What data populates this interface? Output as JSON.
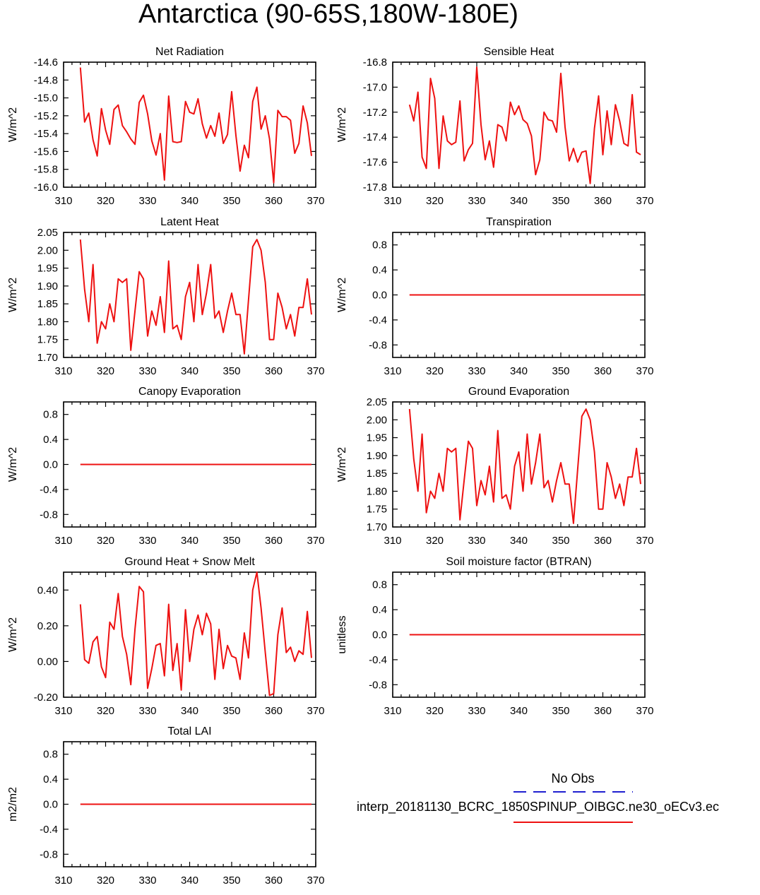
{
  "page": {
    "title": "Antarctica (90-65S,180W-180E)"
  },
  "legend": {
    "obs_label": "No Obs",
    "obs_color": "#1f1fd0",
    "model_label": "interp_20181130_BCRC_1850SPINUP_OIBGC.ne30_oECv3.ec",
    "model_color": "#ee1111"
  },
  "chart_data": [
    {
      "type": "line",
      "title": "Net Radiation",
      "ylabel": "W/m^2",
      "xlim": [
        310,
        370
      ],
      "xticks": [
        310,
        320,
        330,
        340,
        350,
        360,
        370
      ],
      "ylim": [
        -16.0,
        -14.6
      ],
      "yticks": [
        "-14.6",
        "-14.8",
        "-15.0",
        "-15.2",
        "-15.4",
        "-15.6",
        "-15.8",
        "-16.0"
      ],
      "x": [
        314,
        315,
        316,
        317,
        318,
        319,
        320,
        321,
        322,
        323,
        324,
        325,
        326,
        327,
        328,
        329,
        330,
        331,
        332,
        333,
        334,
        335,
        336,
        337,
        338,
        339,
        340,
        341,
        342,
        343,
        344,
        345,
        346,
        347,
        348,
        349,
        350,
        351,
        352,
        353,
        354,
        355,
        356,
        357,
        358,
        359,
        360,
        361,
        362,
        363,
        364,
        365,
        366,
        367,
        368,
        369
      ],
      "series": [
        {
          "values": [
            -14.66,
            -15.27,
            -15.17,
            -15.47,
            -15.65,
            -15.12,
            -15.36,
            -15.52,
            -15.13,
            -15.08,
            -15.31,
            -15.38,
            -15.46,
            -15.52,
            -15.05,
            -14.97,
            -15.18,
            -15.48,
            -15.64,
            -15.4,
            -15.92,
            -14.98,
            -15.49,
            -15.5,
            -15.49,
            -15.04,
            -15.16,
            -15.18,
            -15.01,
            -15.29,
            -15.45,
            -15.31,
            -15.43,
            -15.17,
            -15.51,
            -15.41,
            -14.93,
            -15.42,
            -15.82,
            -15.53,
            -15.67,
            -15.04,
            -14.88,
            -15.35,
            -15.2,
            -15.46,
            -15.95,
            -15.14,
            -15.21,
            -15.21,
            -15.25,
            -15.62,
            -15.51,
            -15.09,
            -15.28,
            -15.65
          ]
        }
      ]
    },
    {
      "type": "line",
      "title": "Sensible Heat",
      "ylabel": "W/m^2",
      "xlim": [
        310,
        370
      ],
      "xticks": [
        310,
        320,
        330,
        340,
        350,
        360,
        370
      ],
      "ylim": [
        -17.8,
        -16.8
      ],
      "yticks": [
        "-16.8",
        "-17.0",
        "-17.2",
        "-17.4",
        "-17.6",
        "-17.8"
      ],
      "x": [
        314,
        315,
        316,
        317,
        318,
        319,
        320,
        321,
        322,
        323,
        324,
        325,
        326,
        327,
        328,
        329,
        330,
        331,
        332,
        333,
        334,
        335,
        336,
        337,
        338,
        339,
        340,
        341,
        342,
        343,
        344,
        345,
        346,
        347,
        348,
        349,
        350,
        351,
        352,
        353,
        354,
        355,
        356,
        357,
        358,
        359,
        360,
        361,
        362,
        363,
        364,
        365,
        366,
        367,
        368,
        369
      ],
      "series": [
        {
          "values": [
            -17.14,
            -17.27,
            -17.04,
            -17.56,
            -17.65,
            -16.93,
            -17.09,
            -17.65,
            -17.23,
            -17.43,
            -17.46,
            -17.44,
            -17.11,
            -17.59,
            -17.5,
            -17.45,
            -16.84,
            -17.3,
            -17.58,
            -17.43,
            -17.64,
            -17.3,
            -17.32,
            -17.43,
            -17.12,
            -17.22,
            -17.15,
            -17.26,
            -17.29,
            -17.39,
            -17.7,
            -17.58,
            -17.2,
            -17.26,
            -17.27,
            -17.36,
            -16.89,
            -17.32,
            -17.59,
            -17.49,
            -17.6,
            -17.52,
            -17.51,
            -17.77,
            -17.33,
            -17.07,
            -17.54,
            -17.19,
            -17.46,
            -17.14,
            -17.27,
            -17.45,
            -17.47,
            -17.06,
            -17.52,
            -17.54
          ]
        }
      ]
    },
    {
      "type": "line",
      "title": "Latent Heat",
      "ylabel": "W/m^2",
      "xlim": [
        310,
        370
      ],
      "xticks": [
        310,
        320,
        330,
        340,
        350,
        360,
        370
      ],
      "ylim": [
        1.7,
        2.05
      ],
      "yticks": [
        "2.05",
        "2.00",
        "1.95",
        "1.90",
        "1.85",
        "1.80",
        "1.75",
        "1.70"
      ],
      "x": [
        314,
        315,
        316,
        317,
        318,
        319,
        320,
        321,
        322,
        323,
        324,
        325,
        326,
        327,
        328,
        329,
        330,
        331,
        332,
        333,
        334,
        335,
        336,
        337,
        338,
        339,
        340,
        341,
        342,
        343,
        344,
        345,
        346,
        347,
        348,
        349,
        350,
        351,
        352,
        353,
        354,
        355,
        356,
        357,
        358,
        359,
        360,
        361,
        362,
        363,
        364,
        365,
        366,
        367,
        368,
        369
      ],
      "series": [
        {
          "values": [
            2.03,
            1.89,
            1.8,
            1.96,
            1.74,
            1.8,
            1.78,
            1.85,
            1.8,
            1.92,
            1.91,
            1.92,
            1.72,
            1.83,
            1.94,
            1.92,
            1.76,
            1.83,
            1.79,
            1.87,
            1.77,
            1.97,
            1.78,
            1.79,
            1.75,
            1.87,
            1.91,
            1.8,
            1.96,
            1.82,
            1.88,
            1.96,
            1.81,
            1.83,
            1.77,
            1.83,
            1.88,
            1.82,
            1.82,
            1.71,
            1.86,
            2.01,
            2.03,
            2.0,
            1.91,
            1.75,
            1.75,
            1.88,
            1.84,
            1.78,
            1.82,
            1.76,
            1.84,
            1.84,
            1.92,
            1.82
          ]
        }
      ]
    },
    {
      "type": "line",
      "title": "Transpiration",
      "ylabel": "W/m^2",
      "xlim": [
        310,
        370
      ],
      "xticks": [
        310,
        320,
        330,
        340,
        350,
        360,
        370
      ],
      "ylim": [
        -1.0,
        1.0
      ],
      "yticks": [
        "0.8",
        "0.4",
        "0.0",
        "-0.4",
        "-0.8"
      ],
      "x": [
        314,
        369
      ],
      "series": [
        {
          "values": [
            0.0,
            0.0
          ]
        }
      ]
    },
    {
      "type": "line",
      "title": "Canopy Evaporation",
      "ylabel": "W/m^2",
      "xlim": [
        310,
        370
      ],
      "xticks": [
        310,
        320,
        330,
        340,
        350,
        360,
        370
      ],
      "ylim": [
        -1.0,
        1.0
      ],
      "yticks": [
        "0.8",
        "0.4",
        "0.0",
        "-0.4",
        "-0.8"
      ],
      "x": [
        314,
        369
      ],
      "series": [
        {
          "values": [
            0.0,
            0.0
          ]
        }
      ]
    },
    {
      "type": "line",
      "title": "Ground Evaporation",
      "ylabel": "W/m^2",
      "xlim": [
        310,
        370
      ],
      "xticks": [
        310,
        320,
        330,
        340,
        350,
        360,
        370
      ],
      "ylim": [
        1.7,
        2.05
      ],
      "yticks": [
        "2.05",
        "2.00",
        "1.95",
        "1.90",
        "1.85",
        "1.80",
        "1.75",
        "1.70"
      ],
      "x": [
        314,
        315,
        316,
        317,
        318,
        319,
        320,
        321,
        322,
        323,
        324,
        325,
        326,
        327,
        328,
        329,
        330,
        331,
        332,
        333,
        334,
        335,
        336,
        337,
        338,
        339,
        340,
        341,
        342,
        343,
        344,
        345,
        346,
        347,
        348,
        349,
        350,
        351,
        352,
        353,
        354,
        355,
        356,
        357,
        358,
        359,
        360,
        361,
        362,
        363,
        364,
        365,
        366,
        367,
        368,
        369
      ],
      "series": [
        {
          "values": [
            2.03,
            1.89,
            1.8,
            1.96,
            1.74,
            1.8,
            1.78,
            1.85,
            1.8,
            1.92,
            1.91,
            1.92,
            1.72,
            1.83,
            1.94,
            1.92,
            1.76,
            1.83,
            1.79,
            1.87,
            1.77,
            1.97,
            1.78,
            1.79,
            1.75,
            1.87,
            1.91,
            1.8,
            1.96,
            1.82,
            1.88,
            1.96,
            1.81,
            1.83,
            1.77,
            1.83,
            1.88,
            1.82,
            1.82,
            1.71,
            1.86,
            2.01,
            2.03,
            2.0,
            1.91,
            1.75,
            1.75,
            1.88,
            1.84,
            1.78,
            1.82,
            1.76,
            1.84,
            1.84,
            1.92,
            1.82
          ]
        }
      ]
    },
    {
      "type": "line",
      "title": "Ground Heat + Snow Melt",
      "ylabel": "W/m^2",
      "xlim": [
        310,
        370
      ],
      "xticks": [
        310,
        320,
        330,
        340,
        350,
        360,
        370
      ],
      "ylim": [
        -0.2,
        0.5
      ],
      "yticks": [
        "0.40",
        "0.20",
        "0.00",
        "-0.20"
      ],
      "ytickvals": [
        0.4,
        0.2,
        0.0,
        -0.2
      ],
      "x": [
        314,
        315,
        316,
        317,
        318,
        319,
        320,
        321,
        322,
        323,
        324,
        325,
        326,
        327,
        328,
        329,
        330,
        331,
        332,
        333,
        334,
        335,
        336,
        337,
        338,
        339,
        340,
        341,
        342,
        343,
        344,
        345,
        346,
        347,
        348,
        349,
        350,
        351,
        352,
        353,
        354,
        355,
        356,
        357,
        358,
        359,
        360,
        361,
        362,
        363,
        364,
        365,
        366,
        367,
        368,
        369
      ],
      "series": [
        {
          "values": [
            0.32,
            0.01,
            -0.01,
            0.11,
            0.14,
            -0.03,
            -0.09,
            0.22,
            0.18,
            0.38,
            0.14,
            0.04,
            -0.13,
            0.18,
            0.42,
            0.39,
            -0.15,
            -0.04,
            0.09,
            0.1,
            -0.08,
            0.32,
            -0.05,
            0.1,
            -0.16,
            0.29,
            0.0,
            0.18,
            0.26,
            0.15,
            0.27,
            0.21,
            -0.1,
            0.18,
            -0.04,
            0.09,
            0.03,
            0.02,
            -0.1,
            0.16,
            0.02,
            0.4,
            0.5,
            0.3,
            0.05,
            -0.19,
            -0.18,
            0.15,
            0.3,
            0.05,
            0.08,
            0.0,
            0.06,
            0.04,
            0.28,
            0.02
          ]
        }
      ]
    },
    {
      "type": "line",
      "title": "Soil moisture factor (BTRAN)",
      "ylabel": "unitless",
      "xlim": [
        310,
        370
      ],
      "xticks": [
        310,
        320,
        330,
        340,
        350,
        360,
        370
      ],
      "ylim": [
        -1.0,
        1.0
      ],
      "yticks": [
        "0.8",
        "0.4",
        "0.0",
        "-0.4",
        "-0.8"
      ],
      "x": [
        314,
        369
      ],
      "series": [
        {
          "values": [
            0.0,
            0.0
          ]
        }
      ]
    },
    {
      "type": "line",
      "title": "Total LAI",
      "ylabel": "m2/m2",
      "xlim": [
        310,
        370
      ],
      "xticks": [
        310,
        320,
        330,
        340,
        350,
        360,
        370
      ],
      "ylim": [
        -1.0,
        1.0
      ],
      "yticks": [
        "0.8",
        "0.4",
        "0.0",
        "-0.4",
        "-0.8"
      ],
      "x": [
        314,
        369
      ],
      "series": [
        {
          "values": [
            0.0,
            0.0
          ]
        }
      ]
    }
  ]
}
